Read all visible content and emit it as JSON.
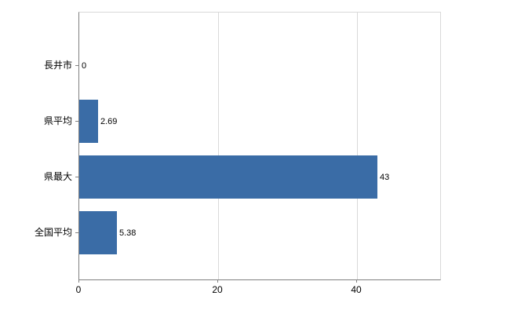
{
  "chart_data": {
    "type": "bar",
    "orientation": "horizontal",
    "title": "",
    "categories": [
      "長井市",
      "県平均",
      "県最大",
      "全国平均"
    ],
    "values": [
      0,
      2.69,
      43,
      5.38
    ],
    "value_labels": [
      "0",
      "2.69",
      "43",
      "5.38"
    ],
    "xlabel": "",
    "ylabel": "",
    "xticks": [
      0,
      20,
      40
    ],
    "xtick_labels": [
      "0",
      "20",
      "40"
    ],
    "xlim": [
      0,
      52
    ],
    "grid": true,
    "legend": false,
    "bar_color": "#3a6ca6",
    "grid_color": "#d9d9d9",
    "axis_color": "#808080",
    "text_color": "#000000"
  }
}
